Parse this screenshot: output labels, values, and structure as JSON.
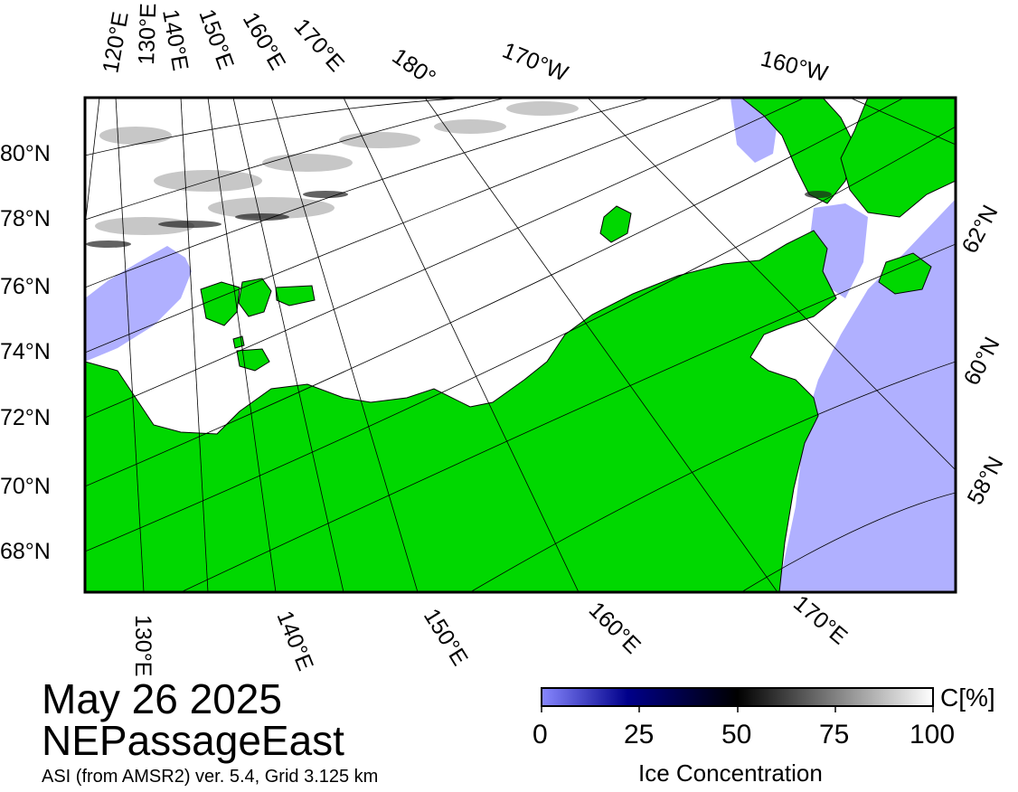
{
  "map": {
    "top_lon_labels": [
      "120°E",
      "130°E",
      "140°E",
      "150°E",
      "160°E",
      "170°E",
      "180°",
      "170°W",
      "160°W"
    ],
    "bottom_lon_labels": [
      "130°E",
      "140°E",
      "150°E",
      "160°E",
      "170°E"
    ],
    "left_lat_labels": [
      "80°N",
      "78°N",
      "76°N",
      "74°N",
      "72°N",
      "70°N",
      "68°N"
    ],
    "right_lat_labels": [
      "62°N",
      "60°N",
      "58°N"
    ],
    "colors": {
      "land": "#00d800",
      "open_water": "#b0b0ff",
      "ice_full": "#ffffff",
      "frame": "#000000"
    }
  },
  "caption": {
    "date": "May 26 2025",
    "region": "NEPassageEast",
    "source": "ASI (from AMSR2) ver. 5.4,  Grid 3.125 km"
  },
  "colorbar": {
    "unit": "C[%]",
    "title": "Ice Concentration",
    "ticks": [
      "0",
      "25",
      "50",
      "75",
      "100"
    ],
    "gradient": [
      "#8888ff",
      "#00008a",
      "#000000",
      "#808080",
      "#ffffff"
    ]
  }
}
